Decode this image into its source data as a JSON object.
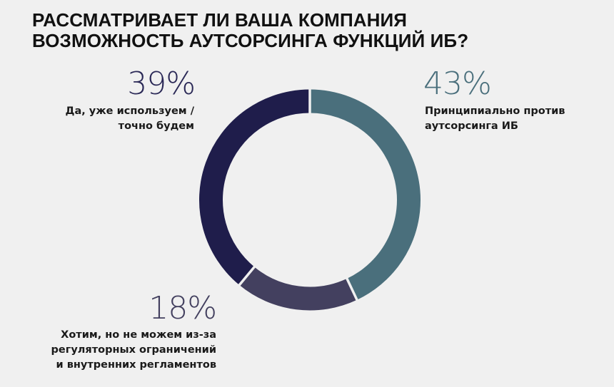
{
  "title": {
    "line1": "РАССМАТРИВАЕТ ЛИ ВАША КОМПАНИЯ",
    "line2": "ВОЗМОЖНОСТЬ АУТСОРСИНГА ФУНКЦИЙ ИБ?"
  },
  "segments": [
    {
      "id": "against",
      "percent_label": "43%",
      "label_lines": [
        "Принципиально против",
        "аутсорсинга ИБ"
      ],
      "color": "#4A6F7C",
      "text_color": "#4A6F7C"
    },
    {
      "id": "want",
      "percent_label": "18%",
      "label_lines": [
        "Хотим, но не можем из-за",
        "регуляторных ограничений",
        "и внутренних регламентов"
      ],
      "color": "#43405F",
      "text_color": "#43405F"
    },
    {
      "id": "yes",
      "percent_label": "39%",
      "label_lines": [
        "Да, уже используем /",
        "точно будем"
      ],
      "color": "#1F1D4B",
      "text_color": "#2A2856"
    }
  ],
  "colors": {
    "background": "#F0F0F0",
    "title": "#111111"
  },
  "chart_data": {
    "type": "pie",
    "subtype": "donut",
    "title": "РАССМАТРИВАЕТ ЛИ ВАША КОМПАНИЯ ВОЗМОЖНОСТЬ АУТСОРСИНГА ФУНКЦИЙ ИБ?",
    "categories": [
      "Принципиально против аутсорсинга ИБ",
      "Хотим, но не можем из-за регуляторных ограничений и внутренних регламентов",
      "Да, уже используем / точно будем"
    ],
    "values": [
      43,
      18,
      39
    ],
    "unit": "%",
    "colors": [
      "#4A6F7C",
      "#43405F",
      "#1F1D4B"
    ],
    "start_angle": "12 o'clock",
    "direction": "clockwise",
    "legend": "none (direct labels around the donut)"
  }
}
